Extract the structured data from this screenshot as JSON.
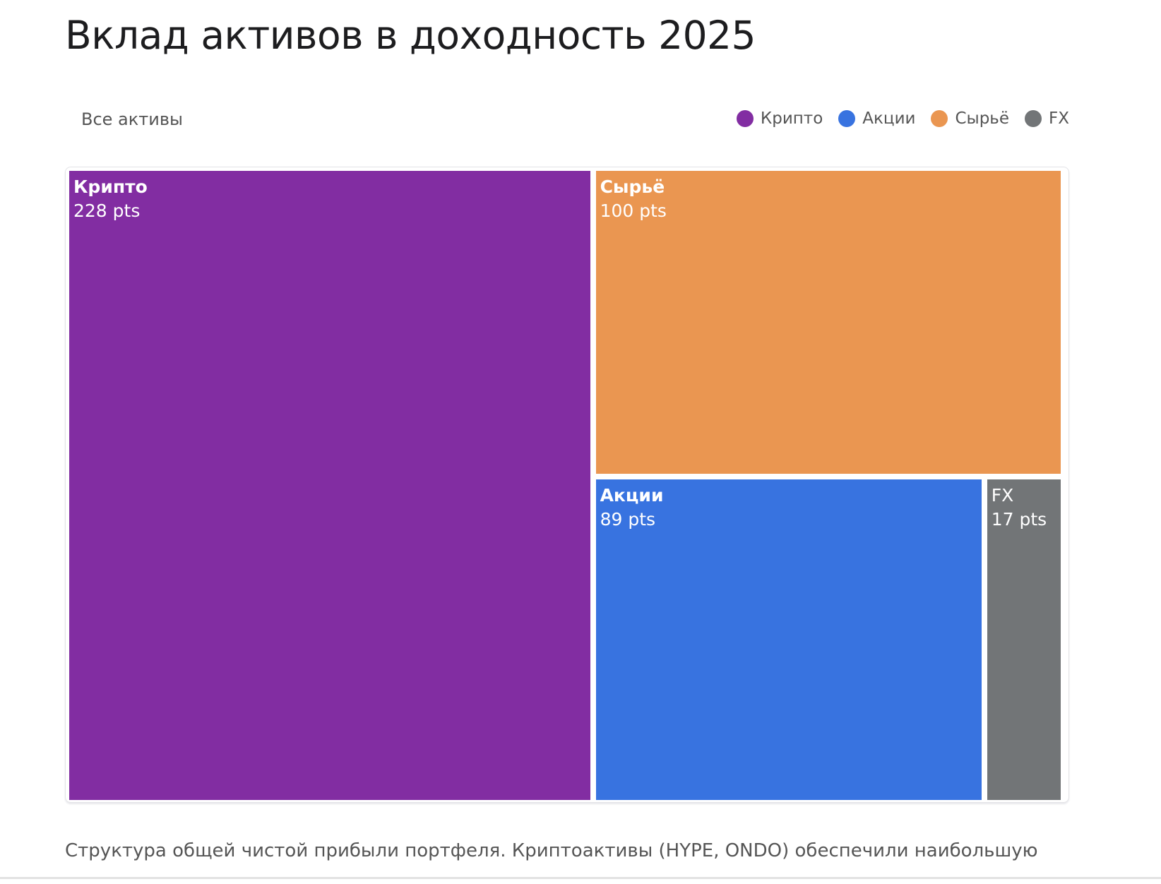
{
  "title": "Вклад активов в доходность 2025",
  "filter_label": "Все активы",
  "caption": "Структура общей чистой прибыли портфеля. Криптоактивы (HYPE, ONDO) обеспечили наибольшую",
  "chart_data": {
    "type": "treemap",
    "title": "Вклад активов в доходность 2025",
    "unit": "pts",
    "legend_position": "top-right",
    "items": [
      {
        "name": "Крипто",
        "value": 228,
        "label": "228 pts",
        "color": "#822da2"
      },
      {
        "name": "Сырьё",
        "value": 100,
        "label": "100 pts",
        "color": "#ea9651"
      },
      {
        "name": "Акции",
        "value": 89,
        "label": "89 pts",
        "color": "#3873e0"
      },
      {
        "name": "FX",
        "value": 17,
        "label": "17 pts",
        "color": "#727577"
      }
    ],
    "legend": [
      {
        "name": "Крипто",
        "color": "#822da2"
      },
      {
        "name": "Акции",
        "color": "#3873e0"
      },
      {
        "name": "Сырьё",
        "color": "#ea9651"
      },
      {
        "name": "FX",
        "color": "#727577"
      }
    ]
  }
}
